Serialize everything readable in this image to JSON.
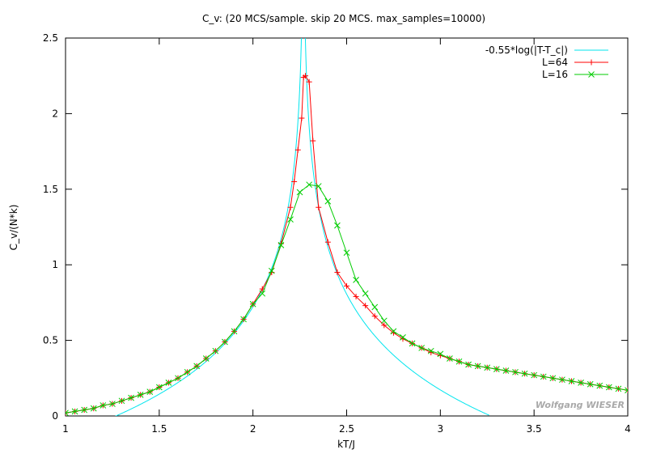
{
  "chart_data": {
    "type": "line",
    "title": "C_v: (20 MCS/sample. skip 20 MCS. max_samples=10000)",
    "xlabel": "kT/J",
    "ylabel": "C_v/(N*k)",
    "xlim": [
      1,
      4
    ],
    "ylim": [
      0,
      2.5
    ],
    "x_ticks": [
      1,
      1.5,
      2,
      2.5,
      3,
      3.5,
      4
    ],
    "x_tick_labels": [
      "1",
      "1.5",
      "2",
      "2.5",
      "3",
      "3.5",
      "4"
    ],
    "y_ticks": [
      0,
      0.5,
      1,
      1.5,
      2,
      2.5
    ],
    "y_tick_labels": [
      "0",
      "0.5",
      "1",
      "1.5",
      "2",
      "2.5"
    ],
    "grid": false,
    "legend_position": "top-right",
    "watermark": "Wolfgang WIESER",
    "series": [
      {
        "name": "-0.55*log(|T-T_c|)",
        "color": "#00e5ee",
        "marker": "none",
        "function": {
          "a": -0.55,
          "tc": 2.269,
          "x_range": [
            1.26,
            3.26
          ]
        }
      },
      {
        "name": "L=64",
        "color": "#ff0000",
        "marker": "plus",
        "x": [
          1.0,
          1.05,
          1.1,
          1.15,
          1.2,
          1.25,
          1.3,
          1.35,
          1.4,
          1.45,
          1.5,
          1.55,
          1.6,
          1.65,
          1.7,
          1.75,
          1.8,
          1.85,
          1.9,
          1.95,
          2.0,
          2.05,
          2.1,
          2.15,
          2.2,
          2.22,
          2.24,
          2.26,
          2.27,
          2.28,
          2.3,
          2.32,
          2.35,
          2.4,
          2.45,
          2.5,
          2.55,
          2.6,
          2.65,
          2.7,
          2.75,
          2.8,
          2.85,
          2.9,
          2.95,
          3.0,
          3.05,
          3.1,
          3.15,
          3.2,
          3.25,
          3.3,
          3.35,
          3.4,
          3.45,
          3.5,
          3.55,
          3.6,
          3.65,
          3.7,
          3.75,
          3.8,
          3.85,
          3.9,
          3.95,
          4.0
        ],
        "y": [
          0.02,
          0.03,
          0.04,
          0.05,
          0.07,
          0.08,
          0.1,
          0.12,
          0.14,
          0.16,
          0.19,
          0.22,
          0.25,
          0.29,
          0.33,
          0.38,
          0.43,
          0.49,
          0.56,
          0.64,
          0.74,
          0.84,
          0.95,
          1.14,
          1.38,
          1.55,
          1.76,
          1.97,
          2.24,
          2.25,
          2.21,
          1.82,
          1.38,
          1.15,
          0.95,
          0.86,
          0.79,
          0.73,
          0.66,
          0.6,
          0.55,
          0.51,
          0.48,
          0.45,
          0.42,
          0.4,
          0.38,
          0.36,
          0.34,
          0.33,
          0.32,
          0.31,
          0.3,
          0.29,
          0.28,
          0.27,
          0.26,
          0.25,
          0.24,
          0.23,
          0.22,
          0.21,
          0.2,
          0.19,
          0.18,
          0.17
        ]
      },
      {
        "name": "L=16",
        "color": "#00cc00",
        "marker": "cross",
        "x": [
          1.0,
          1.05,
          1.1,
          1.15,
          1.2,
          1.25,
          1.3,
          1.35,
          1.4,
          1.45,
          1.5,
          1.55,
          1.6,
          1.65,
          1.7,
          1.75,
          1.8,
          1.85,
          1.9,
          1.95,
          2.0,
          2.05,
          2.1,
          2.15,
          2.2,
          2.25,
          2.3,
          2.35,
          2.4,
          2.45,
          2.5,
          2.55,
          2.6,
          2.65,
          2.7,
          2.75,
          2.8,
          2.85,
          2.9,
          2.95,
          3.0,
          3.05,
          3.1,
          3.15,
          3.2,
          3.25,
          3.3,
          3.35,
          3.4,
          3.45,
          3.5,
          3.55,
          3.6,
          3.65,
          3.7,
          3.75,
          3.8,
          3.85,
          3.9,
          3.95,
          4.0
        ],
        "y": [
          0.02,
          0.03,
          0.04,
          0.05,
          0.07,
          0.08,
          0.1,
          0.12,
          0.14,
          0.16,
          0.19,
          0.22,
          0.25,
          0.29,
          0.33,
          0.38,
          0.43,
          0.49,
          0.56,
          0.64,
          0.74,
          0.81,
          0.96,
          1.13,
          1.3,
          1.48,
          1.53,
          1.52,
          1.42,
          1.26,
          1.08,
          0.9,
          0.81,
          0.72,
          0.63,
          0.56,
          0.52,
          0.48,
          0.45,
          0.43,
          0.41,
          0.38,
          0.36,
          0.34,
          0.33,
          0.32,
          0.31,
          0.3,
          0.29,
          0.28,
          0.27,
          0.26,
          0.25,
          0.24,
          0.23,
          0.22,
          0.21,
          0.2,
          0.19,
          0.18,
          0.17
        ]
      }
    ]
  }
}
